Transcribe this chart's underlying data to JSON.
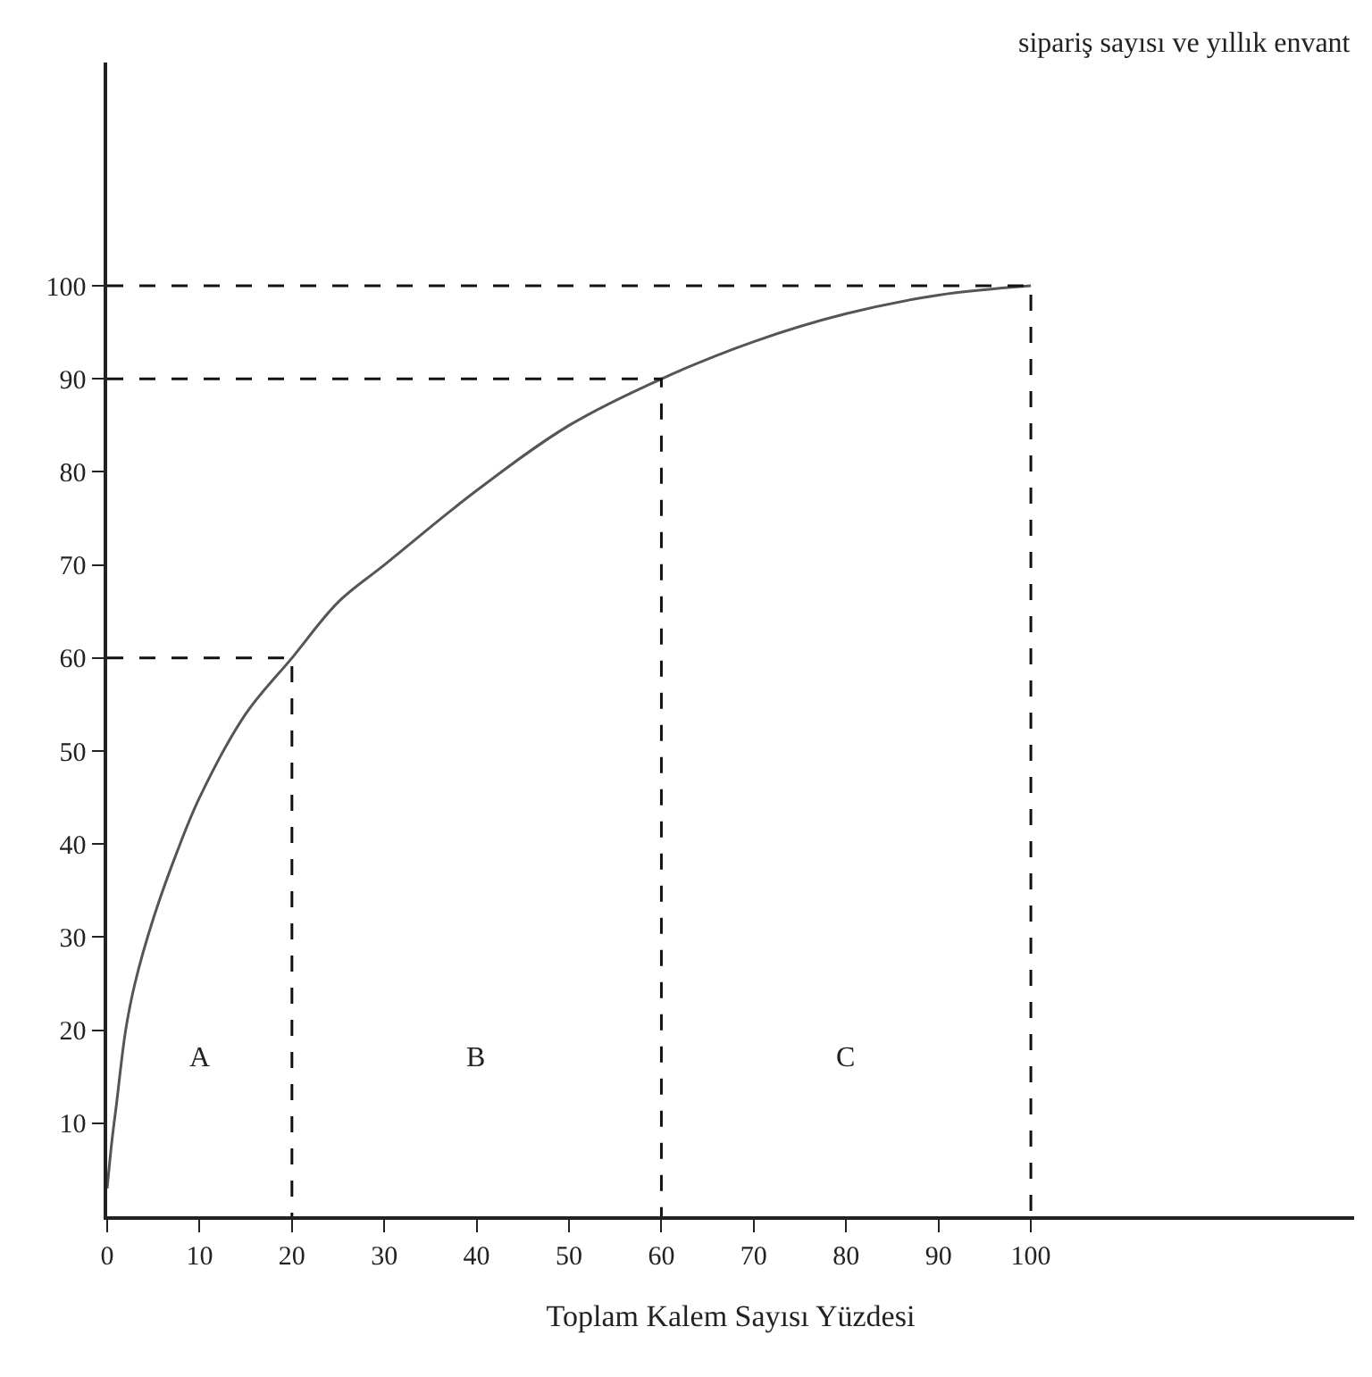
{
  "chart_data": {
    "type": "line",
    "xlabel": "Toplam Kalem Sayısı Yüzdesi",
    "xlim": [
      0,
      135
    ],
    "ylim": [
      0,
      124
    ],
    "xticks": [
      0,
      10,
      20,
      30,
      40,
      50,
      60,
      70,
      80,
      90,
      100
    ],
    "yticks": [
      10,
      20,
      30,
      40,
      50,
      60,
      70,
      80,
      90,
      100
    ],
    "marker": "none",
    "series": [
      {
        "color": "#555555",
        "line_style": "solid",
        "x": [
          0,
          0.5,
          1,
          2,
          3,
          5,
          7.5,
          10,
          15,
          20,
          25,
          30,
          40,
          50,
          60,
          70,
          80,
          90,
          100
        ],
        "values": [
          3,
          8,
          12,
          20,
          25,
          32,
          39,
          45,
          54,
          60,
          66,
          70,
          78,
          85,
          90,
          94,
          97,
          99,
          100
        ]
      },
      {
        "color": "#111111",
        "line_style": "dashed",
        "x": [
          0,
          20,
          20
        ],
        "values": [
          60,
          60,
          0
        ]
      },
      {
        "color": "#111111",
        "line_style": "dashed",
        "x": [
          0,
          60,
          60
        ],
        "values": [
          90,
          90,
          0
        ]
      },
      {
        "color": "#111111",
        "line_style": "dashed",
        "x": [
          0,
          100,
          100
        ],
        "values": [
          100,
          100,
          0
        ]
      }
    ],
    "annotations": [
      "A",
      "B",
      "C",
      "sipariş sayısı ve yıllık envant"
    ]
  }
}
